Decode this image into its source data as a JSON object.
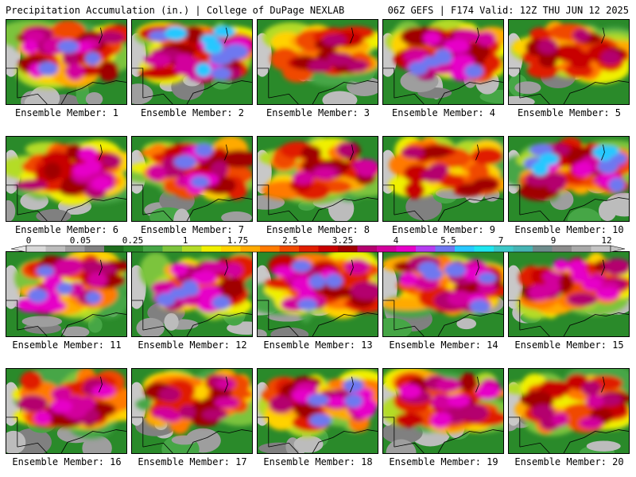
{
  "header": {
    "left_title": "Precipitation Accumulation (in.) | College of DuPage NEXLAB",
    "right_title": "06Z GEFS | F174 Valid: 12Z THU JUN 12 2025"
  },
  "colorbar": {
    "tick_labels": [
      "0",
      "0.05",
      "0.25",
      "1",
      "1.75",
      "2.5",
      "3.25",
      "4",
      "5.5",
      "7",
      "9",
      "12"
    ],
    "colors": [
      "#d8d8d8",
      "#bcbcbc",
      "#9e9e9e",
      "#808080",
      "#1e6e1e",
      "#2a8a2a",
      "#46a646",
      "#7cc43c",
      "#b4dc28",
      "#f0f000",
      "#ffd200",
      "#ffaa00",
      "#ff7a00",
      "#f04a00",
      "#e01e00",
      "#c80000",
      "#a00000",
      "#b4006e",
      "#d2009c",
      "#e600c8",
      "#b43cf0",
      "#6e78f0",
      "#28c8ff",
      "#1ee6f0",
      "#3cc8c8",
      "#46b4b4",
      "#6e8c8c",
      "#8c8c8c",
      "#a8a8a8",
      "#c4c4c4"
    ]
  },
  "panels": [
    {
      "label": "Ensemble Member: 1",
      "intensity": 0.8
    },
    {
      "label": "Ensemble Member: 2",
      "intensity": 0.9
    },
    {
      "label": "Ensemble Member: 3",
      "intensity": 0.55
    },
    {
      "label": "Ensemble Member: 4",
      "intensity": 0.8
    },
    {
      "label": "Ensemble Member: 5",
      "intensity": 0.55
    },
    {
      "label": "Ensemble Member: 6",
      "intensity": 0.75
    },
    {
      "label": "Ensemble Member: 7",
      "intensity": 0.8
    },
    {
      "label": "Ensemble Member: 8",
      "intensity": 0.65
    },
    {
      "label": "Ensemble Member: 9",
      "intensity": 0.5
    },
    {
      "label": "Ensemble Member: 10",
      "intensity": 0.9
    },
    {
      "label": "Ensemble Member: 11",
      "intensity": 0.85
    },
    {
      "label": "Ensemble Member: 12",
      "intensity": 0.85
    },
    {
      "label": "Ensemble Member: 13",
      "intensity": 0.8
    },
    {
      "label": "Ensemble Member: 14",
      "intensity": 0.85
    },
    {
      "label": "Ensemble Member: 15",
      "intensity": 0.75
    },
    {
      "label": "Ensemble Member: 16",
      "intensity": 0.7
    },
    {
      "label": "Ensemble Member: 17",
      "intensity": 0.6
    },
    {
      "label": "Ensemble Member: 18",
      "intensity": 0.85
    },
    {
      "label": "Ensemble Member: 19",
      "intensity": 0.7
    },
    {
      "label": "Ensemble Member: 20",
      "intensity": 0.6
    }
  ]
}
